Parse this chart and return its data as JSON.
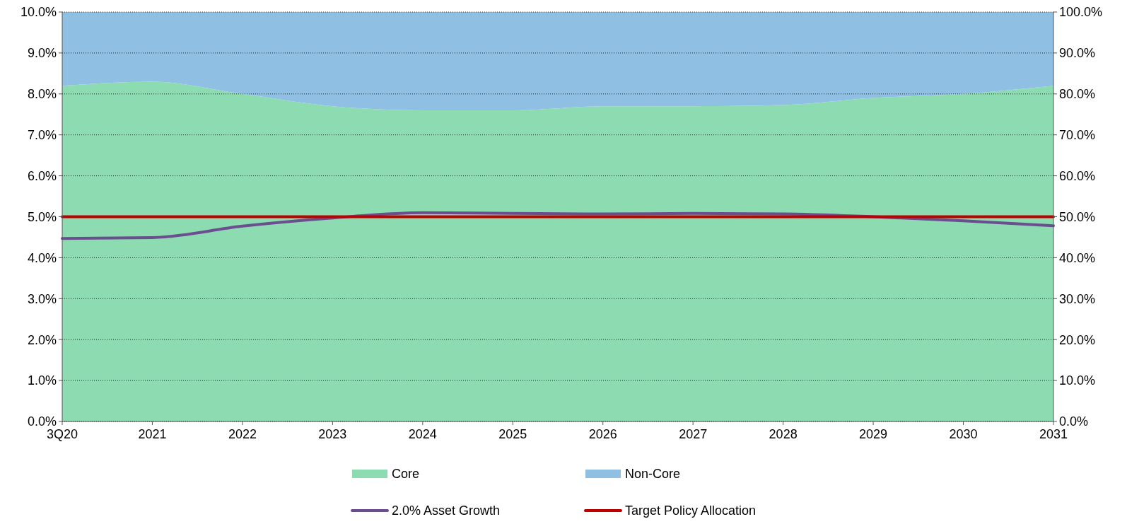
{
  "chart_data": {
    "type": "area",
    "stacked": true,
    "categories": [
      "3Q20",
      "2021",
      "2022",
      "2023",
      "2024",
      "2025",
      "2026",
      "2027",
      "2028",
      "2029",
      "2030",
      "2031"
    ],
    "series": [
      {
        "name": "Core",
        "axis": "y2",
        "color": "#8ddbb0",
        "values": [
          82,
          83,
          80,
          77,
          76,
          76,
          77,
          77,
          77.3,
          79,
          80,
          82
        ]
      },
      {
        "name": "Non-Core",
        "axis": "y2",
        "color": "#8fbfe2",
        "values": [
          18,
          17,
          20,
          23,
          24,
          24,
          23,
          23,
          22.7,
          21,
          20,
          18
        ]
      },
      {
        "name": "2.0% Asset Growth",
        "type": "line",
        "color": "#6a4e8f",
        "values": [
          4.47,
          4.49,
          4.77,
          4.97,
          5.1,
          5.08,
          5.07,
          5.08,
          5.07,
          5.0,
          4.9,
          4.78
        ]
      },
      {
        "name": "Target Policy Allocation",
        "type": "line",
        "color": "#c00000",
        "values": [
          5,
          5,
          5,
          5,
          5,
          5,
          5,
          5,
          5,
          5,
          5,
          5
        ]
      }
    ],
    "ylim": [
      0,
      10
    ],
    "yticks": [
      {
        "value": 0,
        "label": "0.0%"
      },
      {
        "value": 1,
        "label": "1.0%"
      },
      {
        "value": 2,
        "label": "2.0%"
      },
      {
        "value": 3,
        "label": "3.0%"
      },
      {
        "value": 4,
        "label": "4.0%"
      },
      {
        "value": 5,
        "label": "5.0%"
      },
      {
        "value": 6,
        "label": "6.0%"
      },
      {
        "value": 7,
        "label": "7.0%"
      },
      {
        "value": 8,
        "label": "8.0%"
      },
      {
        "value": 9,
        "label": "9.0%"
      },
      {
        "value": 10,
        "label": "10.0%"
      }
    ],
    "y2lim": [
      0,
      100
    ],
    "y2ticks": [
      {
        "value": 0,
        "label": "0.0%"
      },
      {
        "value": 10,
        "label": "10.0%"
      },
      {
        "value": 20,
        "label": "20.0%"
      },
      {
        "value": 30,
        "label": "30.0%"
      },
      {
        "value": 40,
        "label": "40.0%"
      },
      {
        "value": 50,
        "label": "50.0%"
      },
      {
        "value": 60,
        "label": "60.0%"
      },
      {
        "value": 70,
        "label": "70.0%"
      },
      {
        "value": 80,
        "label": "80.0%"
      },
      {
        "value": 90,
        "label": "90.0%"
      },
      {
        "value": 100,
        "label": "100.0%"
      }
    ],
    "grid": "y",
    "legend": "bottom"
  }
}
